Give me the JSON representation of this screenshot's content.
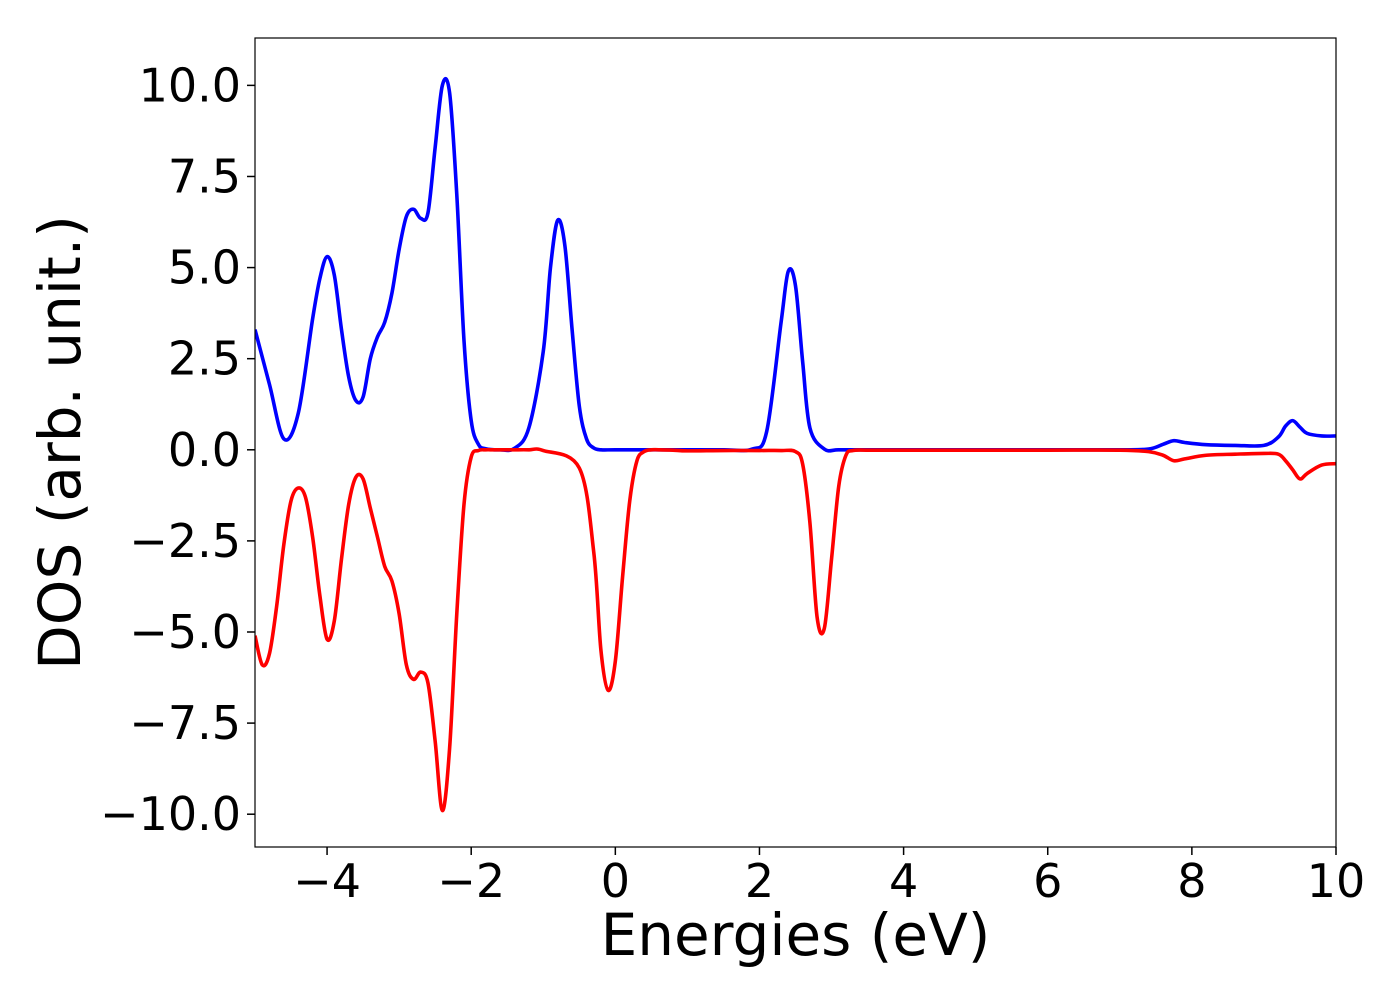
{
  "chart_data": {
    "type": "line",
    "title": "",
    "xlabel": "Energies (eV)",
    "ylabel": "DOS (arb. unit.)",
    "xlim": [
      -5,
      10
    ],
    "ylim": [
      -10.9,
      11.3
    ],
    "grid": false,
    "legend": "none",
    "x_ticks": [
      -4,
      -2,
      0,
      2,
      4,
      6,
      8,
      10
    ],
    "x_tick_labels": [
      "−4",
      "−2",
      "0",
      "2",
      "4",
      "6",
      "8",
      "10"
    ],
    "y_ticks": [
      10,
      7.5,
      5,
      2.5,
      0,
      -2.5,
      -5,
      -7.5,
      -10
    ],
    "y_tick_labels": [
      "10.0",
      "7.5",
      "5.0",
      "2.5",
      "0.0",
      "−2.5",
      "−5.0",
      "−7.5",
      "−10.0"
    ],
    "series": [
      {
        "color": "#0000ff",
        "x": [
          -5.0,
          -4.8,
          -4.6,
          -4.4,
          -4.2,
          -4.1,
          -4.0,
          -3.9,
          -3.8,
          -3.7,
          -3.6,
          -3.5,
          -3.4,
          -3.3,
          -3.2,
          -3.1,
          -3.0,
          -2.9,
          -2.8,
          -2.7,
          -2.6,
          -2.5,
          -2.4,
          -2.3,
          -2.2,
          -2.1,
          -2.0,
          -1.9,
          -1.8,
          -1.6,
          -1.4,
          -1.2,
          -1.0,
          -0.9,
          -0.8,
          -0.7,
          -0.6,
          -0.5,
          -0.4,
          -0.3,
          -0.2,
          0.0,
          0.5,
          1.0,
          1.5,
          1.9,
          2.1,
          2.3,
          2.4,
          2.5,
          2.6,
          2.7,
          2.9,
          3.1,
          3.5,
          4.0,
          5.0,
          6.0,
          7.0,
          7.4,
          7.6,
          7.75,
          7.9,
          8.2,
          8.6,
          9.0,
          9.2,
          9.3,
          9.4,
          9.5,
          9.6,
          9.8,
          10.0
        ],
        "y": [
          3.3,
          1.8,
          0.3,
          1.0,
          3.6,
          4.7,
          5.3,
          4.8,
          3.3,
          2.0,
          1.35,
          1.45,
          2.5,
          3.1,
          3.5,
          4.3,
          5.5,
          6.4,
          6.6,
          6.35,
          6.5,
          8.3,
          10.0,
          9.8,
          7.0,
          3.0,
          0.8,
          0.15,
          0.03,
          0.0,
          0.04,
          0.6,
          2.7,
          5.0,
          6.3,
          5.6,
          3.3,
          1.2,
          0.3,
          0.05,
          0.0,
          0.0,
          0.0,
          0.0,
          0.0,
          0.02,
          0.5,
          3.5,
          4.9,
          4.5,
          2.4,
          0.6,
          0.02,
          0.0,
          0.0,
          0.0,
          0.0,
          0.0,
          0.0,
          0.02,
          0.15,
          0.25,
          0.2,
          0.14,
          0.12,
          0.12,
          0.35,
          0.65,
          0.8,
          0.62,
          0.45,
          0.38,
          0.38
        ]
      },
      {
        "color": "#ff0000",
        "x": [
          -5.0,
          -4.9,
          -4.8,
          -4.7,
          -4.6,
          -4.5,
          -4.4,
          -4.3,
          -4.2,
          -4.1,
          -4.0,
          -3.9,
          -3.8,
          -3.7,
          -3.6,
          -3.5,
          -3.4,
          -3.3,
          -3.2,
          -3.1,
          -3.0,
          -2.9,
          -2.8,
          -2.7,
          -2.6,
          -2.5,
          -2.4,
          -2.3,
          -2.2,
          -2.1,
          -2.0,
          -1.9,
          -1.8,
          -1.7,
          -1.6,
          -1.5,
          -1.4,
          -1.2,
          -1.0,
          -0.5,
          -0.3,
          -0.2,
          -0.1,
          0.0,
          0.1,
          0.2,
          0.3,
          0.4,
          0.5,
          0.6,
          0.8,
          1.0,
          1.5,
          2.0,
          2.3,
          2.5,
          2.6,
          2.7,
          2.8,
          2.9,
          3.0,
          3.1,
          3.2,
          3.3,
          3.5,
          4.0,
          5.0,
          6.0,
          7.0,
          7.4,
          7.6,
          7.75,
          7.9,
          8.2,
          8.6,
          9.0,
          9.2,
          9.3,
          9.4,
          9.5,
          9.6,
          9.8,
          10.0
        ],
        "y": [
          -5.1,
          -5.9,
          -5.6,
          -4.3,
          -2.6,
          -1.4,
          -1.05,
          -1.3,
          -2.4,
          -4.0,
          -5.2,
          -4.7,
          -3.0,
          -1.5,
          -0.75,
          -0.8,
          -1.6,
          -2.4,
          -3.2,
          -3.6,
          -4.5,
          -5.9,
          -6.3,
          -6.1,
          -6.4,
          -8.0,
          -9.9,
          -8.2,
          -4.5,
          -1.5,
          -0.2,
          -0.02,
          0.0,
          0.0,
          0.0,
          0.0,
          0.0,
          0.0,
          -0.02,
          -0.5,
          -2.8,
          -5.5,
          -6.6,
          -5.8,
          -3.5,
          -1.4,
          -0.3,
          -0.05,
          0.0,
          0.0,
          -0.01,
          -0.03,
          -0.02,
          -0.02,
          -0.02,
          -0.05,
          -0.4,
          -2.0,
          -4.6,
          -4.9,
          -3.0,
          -1.0,
          -0.15,
          -0.02,
          -0.01,
          -0.01,
          -0.01,
          -0.01,
          -0.01,
          -0.05,
          -0.15,
          -0.3,
          -0.25,
          -0.15,
          -0.12,
          -0.1,
          -0.12,
          -0.3,
          -0.55,
          -0.8,
          -0.65,
          -0.42,
          -0.38
        ]
      }
    ]
  }
}
